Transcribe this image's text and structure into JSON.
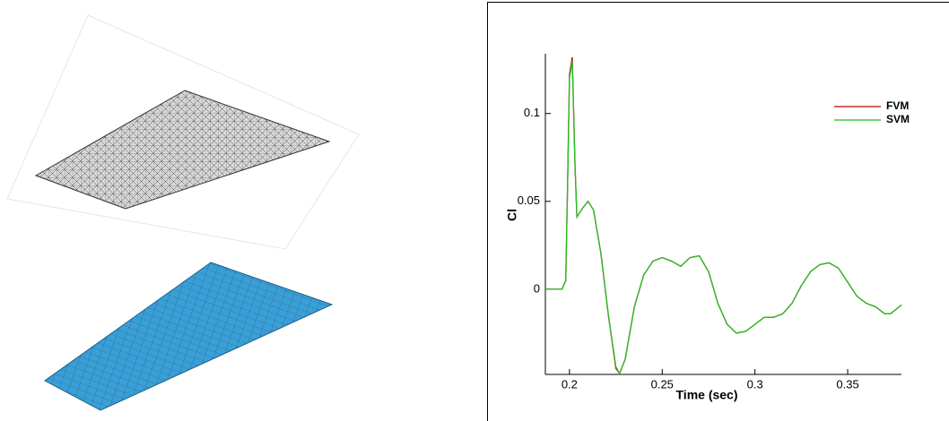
{
  "chart_data": {
    "type": "line",
    "x_label": "Time (sec)",
    "y_label": "Cl",
    "x": [
      0.187,
      0.196,
      0.198,
      0.199,
      0.2,
      0.2015,
      0.203,
      0.204,
      0.207,
      0.21,
      0.213,
      0.217,
      0.221,
      0.225,
      0.227,
      0.23,
      0.235,
      0.24,
      0.245,
      0.25,
      0.255,
      0.26,
      0.265,
      0.27,
      0.275,
      0.28,
      0.285,
      0.29,
      0.295,
      0.3,
      0.305,
      0.31,
      0.315,
      0.32,
      0.325,
      0.33,
      0.335,
      0.34,
      0.345,
      0.35,
      0.355,
      0.36,
      0.365,
      0.37,
      0.373,
      0.379
    ],
    "series": [
      {
        "name": "FVM",
        "color": "#c00000",
        "values": [
          0,
          0,
          0.005,
          0.061,
          0.122,
          0.132,
          0.07,
          0.041,
          0.046,
          0.05,
          0.045,
          0.02,
          -0.015,
          -0.045,
          -0.048,
          -0.04,
          -0.01,
          0.008,
          0.016,
          0.018,
          0.016,
          0.013,
          0.018,
          0.019,
          0.01,
          -0.008,
          -0.02,
          -0.025,
          -0.024,
          -0.02,
          -0.016,
          -0.016,
          -0.014,
          -0.008,
          0.002,
          0.01,
          0.014,
          0.015,
          0.012,
          0.004,
          -0.004,
          -0.008,
          -0.01,
          -0.014,
          -0.014,
          -0.009
        ]
      },
      {
        "name": "SVM",
        "color": "#22c022",
        "values": [
          0,
          0,
          0.005,
          0.06,
          0.12,
          0.13,
          0.07,
          0.041,
          0.046,
          0.05,
          0.045,
          0.02,
          -0.015,
          -0.044,
          -0.048,
          -0.04,
          -0.01,
          0.008,
          0.016,
          0.018,
          0.016,
          0.013,
          0.018,
          0.019,
          0.01,
          -0.008,
          -0.02,
          -0.025,
          -0.024,
          -0.02,
          -0.016,
          -0.016,
          -0.014,
          -0.008,
          0.002,
          0.01,
          0.014,
          0.015,
          0.012,
          0.004,
          -0.004,
          -0.008,
          -0.01,
          -0.014,
          -0.014,
          -0.009
        ]
      }
    ],
    "xlim": [
      0.187,
      0.379
    ],
    "xticks": [
      0.2,
      0.25,
      0.3,
      0.35
    ],
    "ylim": [
      -0.0485,
      0.134
    ],
    "yticks": [
      0,
      0.05,
      0.1
    ],
    "grid": false,
    "legend": "upper right"
  }
}
